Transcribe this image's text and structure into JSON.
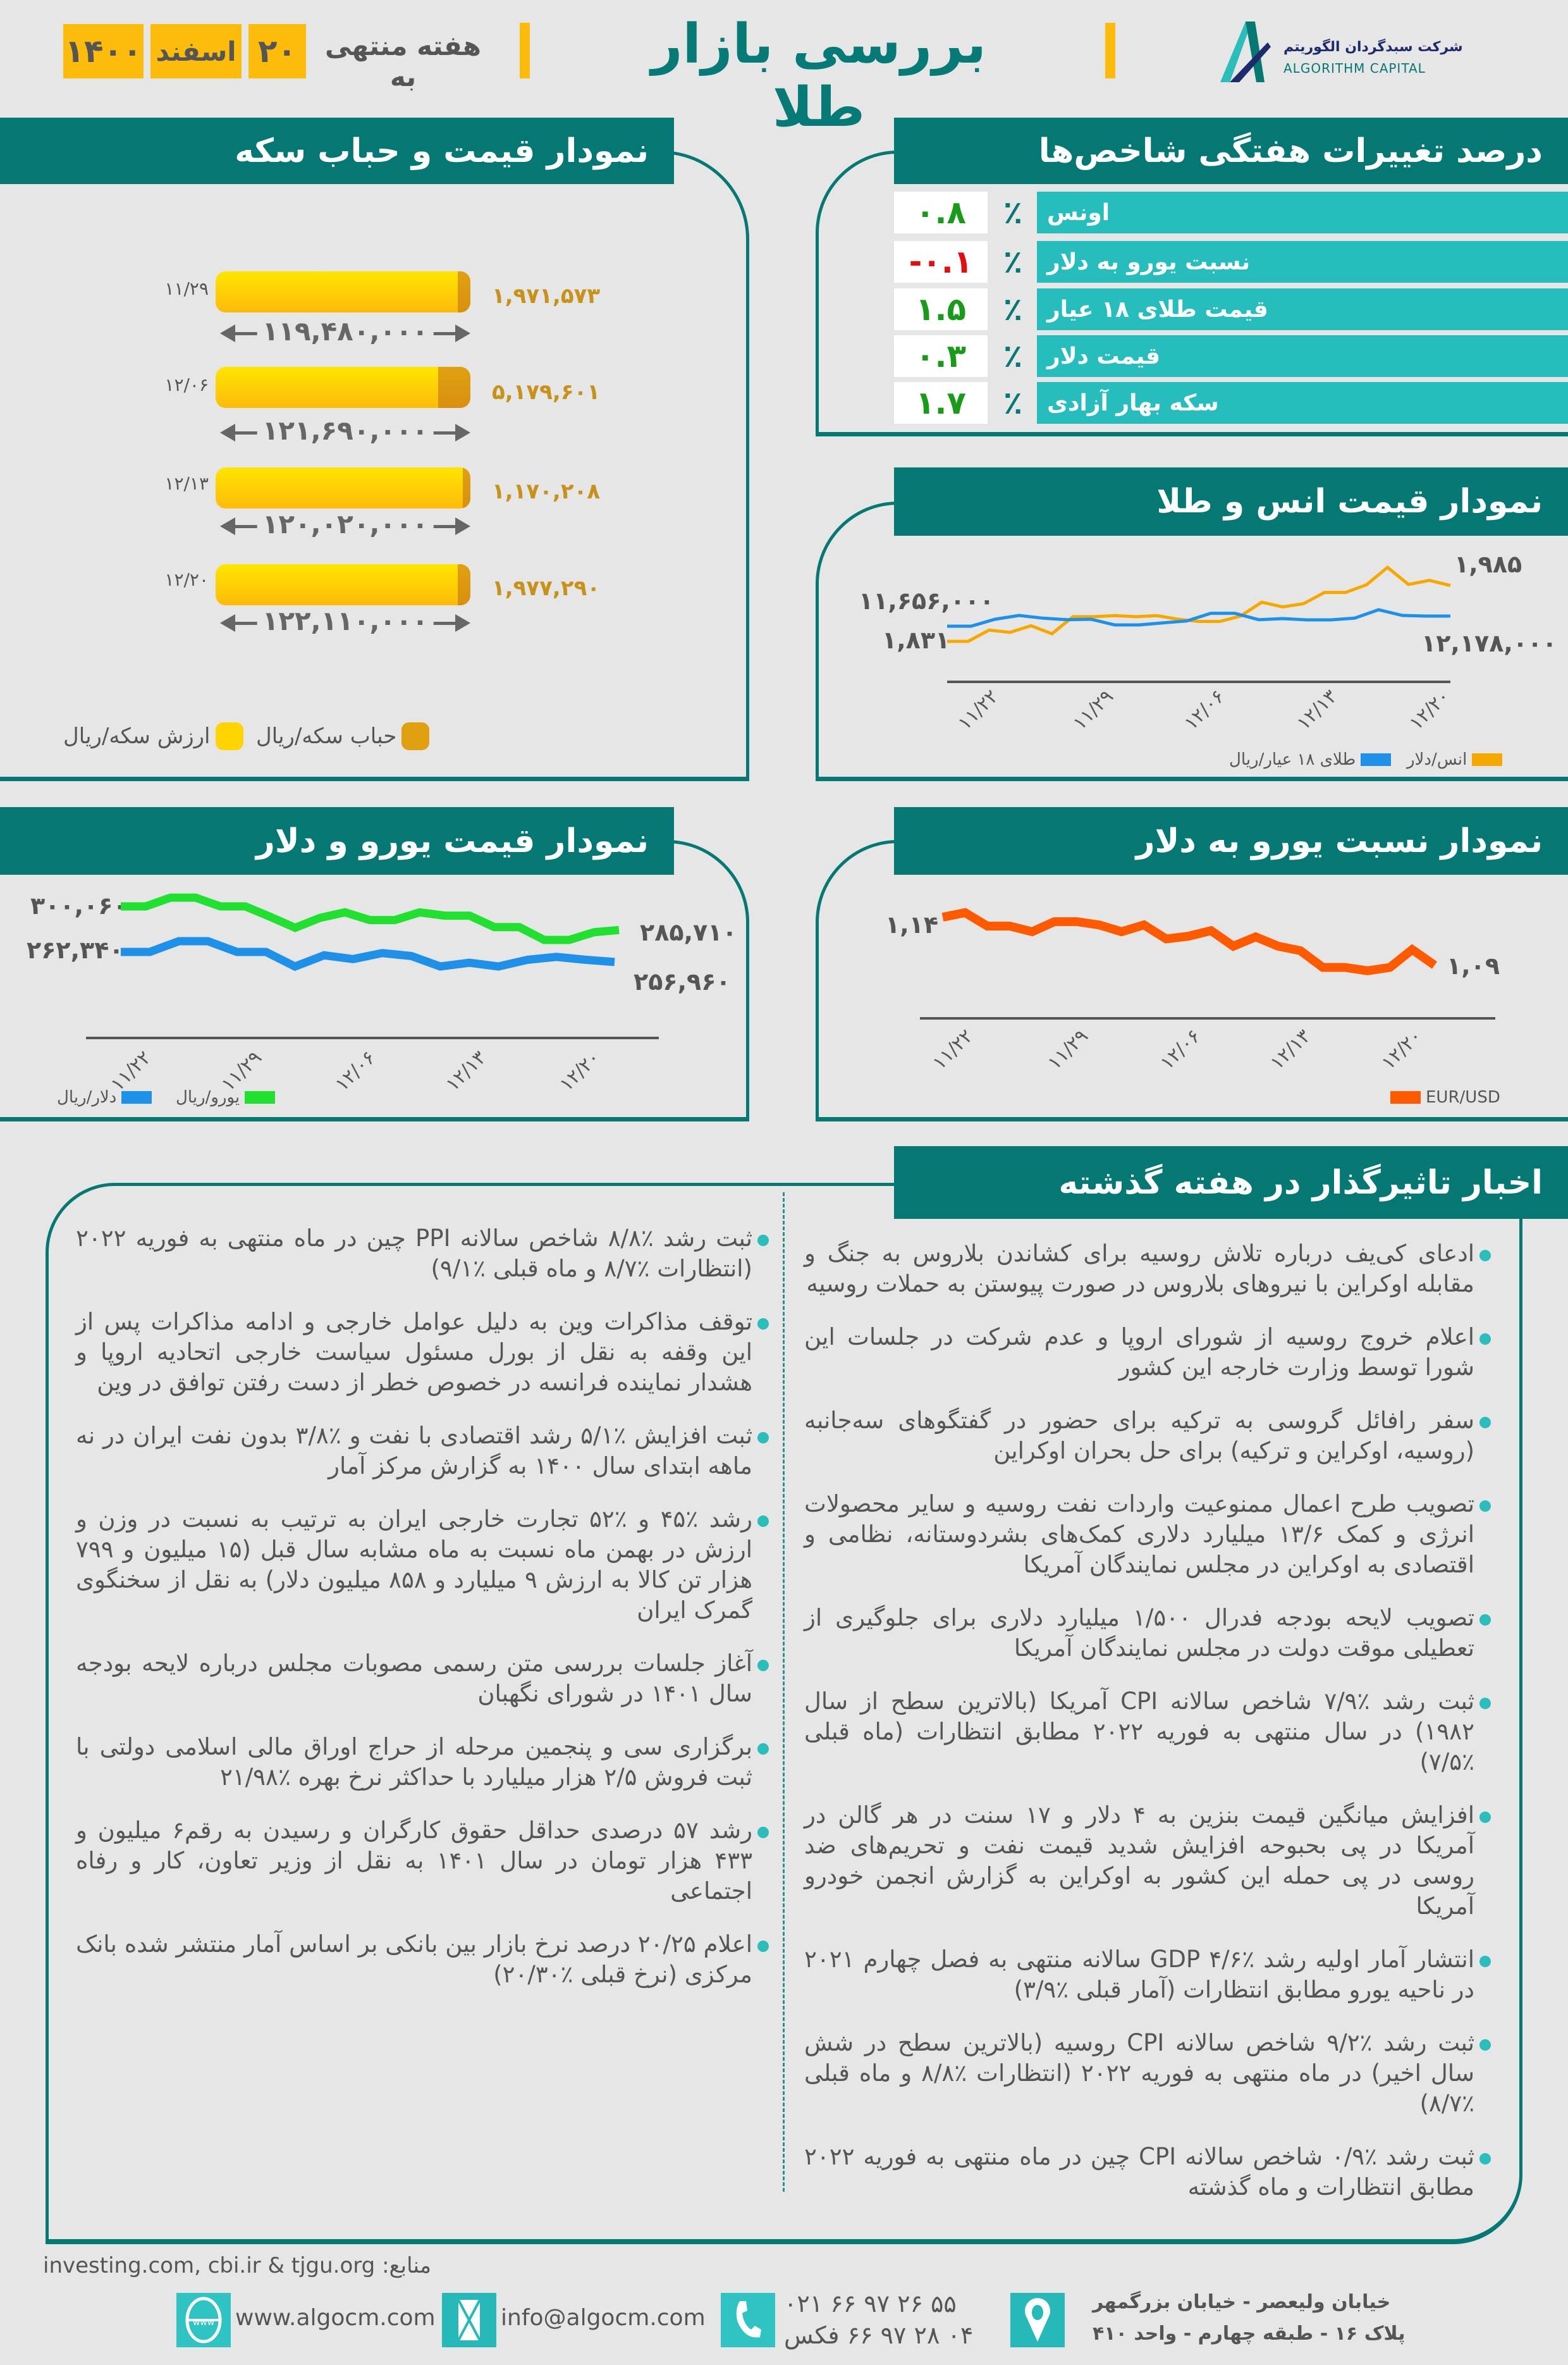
{
  "header": {
    "title": "بررسی بازار طلا",
    "week_label": "هفته منتهی به",
    "day": "۲۰",
    "month": "اسفند",
    "year": "۱۴۰۰",
    "logo_fa": "شرکت سبدگردان الگوریتم",
    "logo_en": "ALGORITHM CAPITAL"
  },
  "colors": {
    "teal_dark": "#057874",
    "teal_light": "#27bdbd",
    "yellow": "#fdbb0b",
    "positive": "#1a9a1a",
    "negative": "#e01010"
  },
  "indices": {
    "title": "درصد تغییرات هفتگی شاخص‌ها",
    "percent_sign": "٪",
    "rows": [
      {
        "label": "اونس",
        "value": "۰.۸",
        "direction": "up"
      },
      {
        "label": "نسبت یورو به دلار",
        "value": "-۰.۱",
        "direction": "down"
      },
      {
        "label": "قیمت طلای ۱۸ عیار",
        "value": "۱.۵",
        "direction": "up"
      },
      {
        "label": "قیمت دلار",
        "value": "۰.۳",
        "direction": "up"
      },
      {
        "label": "سکه بهار آزادی",
        "value": "۱.۷",
        "direction": "up"
      }
    ]
  },
  "chart_data": [
    {
      "id": "coin",
      "type": "bar",
      "title": "نمودار قیمت و حباب سکه",
      "categories": [
        "۱۱/۲۹",
        "۱۲/۰۶",
        "۱۲/۱۳",
        "۱۲/۲۰"
      ],
      "series": [
        {
          "name": "ارزش سکه/ریال",
          "values": [
            119480000,
            121690000,
            120020000,
            122110000
          ],
          "labels": [
            "۱۱۹,۴۸۰,۰۰۰",
            "۱۲۱,۶۹۰,۰۰۰",
            "۱۲۰,۰۲۰,۰۰۰",
            "۱۲۲,۱۱۰,۰۰۰"
          ],
          "color": "#ffd400"
        },
        {
          "name": "حباب سکه/ریال",
          "values": [
            1971573,
            5179601,
            1170208,
            1977290
          ],
          "labels": [
            "۱,۹۷۱,۵۷۳",
            "۵,۱۷۹,۶۰۱",
            "۱,۱۷۰,۲۰۸",
            "۱,۹۷۷,۲۹۰"
          ],
          "color": "#e0a010"
        }
      ]
    },
    {
      "id": "ounce_gold",
      "type": "line",
      "title": "نمودار قیمت انس و طلا",
      "x_ticks": [
        "۱۱/۲۲",
        "۱۱/۲۹",
        "۱۲/۰۶",
        "۱۲/۱۳",
        "۱۲/۲۰"
      ],
      "series": [
        {
          "name": "انس/دلار",
          "color": "#f7a800",
          "start_label": "۱,۸۳۱",
          "end_label": "۱,۹۸۵",
          "values": [
            1831,
            1831,
            1862,
            1856,
            1874,
            1852,
            1899,
            1899,
            1902,
            1899,
            1902,
            1892,
            1886,
            1886,
            1901,
            1939,
            1926,
            1935,
            1966,
            1966,
            1987,
            2035,
            1988,
            1999,
            1985
          ]
        },
        {
          "name": "طلای ۱۸ عیار/ریال",
          "color": "#1e90e8",
          "start_label": "۱۱,۶۵۶,۰۰۰",
          "end_label": "۱۲,۱۷۸,۰۰۰",
          "values": [
            11656000,
            11656000,
            12015000,
            12211000,
            12069000,
            11993000,
            12015000,
            11721000,
            11721000,
            11830000,
            11928000,
            12320000,
            12320000,
            11993000,
            12047000,
            11982000,
            11982000,
            12069000,
            12504000,
            12211000,
            12178000,
            12178000
          ]
        }
      ]
    },
    {
      "id": "euro_dollar",
      "type": "line",
      "title": "نمودار قیمت یورو و دلار",
      "x_ticks": [
        "۱۱/۲۲",
        "۱۱/۲۹",
        "۱۲/۰۶",
        "۱۲/۱۳",
        "۱۲/۲۰"
      ],
      "series": [
        {
          "name": "یورو/ریال",
          "color": "#22e030",
          "start_label": "۳۰۰,۰۶۰",
          "end_label": "۲۸۵,۷۱۰",
          "values": [
            300060,
            300060,
            305424,
            305424,
            300060,
            300060,
            293757,
            287052,
            293087,
            296439,
            291746,
            291746,
            296439,
            294428,
            294428,
            287455,
            287455,
            279677,
            279677,
            284370,
            285710
          ]
        },
        {
          "name": "دلار/ریال",
          "color": "#1e90e8",
          "start_label": "۲۶۲,۳۴۰",
          "end_label": "۲۵۶,۹۶۰",
          "values": [
            262340,
            262340,
            268080,
            268080,
            262340,
            262340,
            254566,
            260546,
            258513,
            261742,
            260187,
            254566,
            256600,
            254566,
            258154,
            259709,
            258154,
            256960
          ]
        }
      ]
    },
    {
      "id": "eurusd",
      "type": "line",
      "title": "نمودار نسبت یورو به دلار",
      "x_ticks": [
        "۱۱/۲۲",
        "۱۱/۲۹",
        "۱۲/۰۶",
        "۱۲/۱۳",
        "۱۲/۲۰"
      ],
      "series": [
        {
          "name": "EUR/USD",
          "color": "#ff5a00",
          "start_label": "۱,۱۴",
          "end_label": "۱,۰۹",
          "values": [
            1.14,
            1.1447,
            1.1307,
            1.1307,
            1.1249,
            1.1353,
            1.1353,
            1.1319,
            1.1249,
            1.1319,
            1.1174,
            1.1202,
            1.126,
            1.1098,
            1.1195,
            1.1098,
            1.1051,
            1.0877,
            1.0877,
            1.0842,
            1.0877,
            1.1063,
            1.09
          ]
        }
      ]
    }
  ],
  "news": {
    "title": "اخبار تاثیرگذار در هفته گذشته",
    "right_column": [
      "ادعای کی‌یف درباره تلاش روسیه برای کشاندن بلاروس به جنگ و مقابله اوکراین با نیروهای بلاروس در صورت پیوستن به حملات روسیه",
      "اعلام خروج روسیه از شورای اروپا و عدم شرکت در جلسات این شورا توسط وزارت خارجه این کشور",
      "سفر رافائل گروسی به ترکیه برای حضور در گفتگوهای سه‌جانبه (روسیه، اوکراین و ترکیه) برای حل بحران اوکراین",
      "تصویب طرح اعمال ممنوعیت واردات نفت روسیه و سایر محصولات انرژی و کمک ۱۳/۶ میلیارد دلاری کمک‌های بشردوستانه، نظامی و اقتصادی به اوکراین در مجلس نمایندگان آمریکا",
      "تصویب لایحه بودجه فدرال ۱/۵۰۰ میلیارد دلاری برای جلوگیری از تعطیلی موقت دولت در مجلس نمایندگان آمریکا",
      "ثبت رشد ٪۷/۹ شاخص سالانه CPI آمریکا (بالاترین سطح از سال ۱۹۸۲) در سال منتهی به فوریه ۲۰۲۲ مطابق انتظارات (ماه قبلی ٪۷/۵)",
      "افزایش میانگین قیمت بنزین به ۴ دلار و ۱۷ سنت در هر گالن در آمریکا در پی بحبوحه افزایش شدید قیمت نفت و تحریم‌های ضد روسی در پی حمله این کشور به اوکراین به گزارش انجمن خودرو آمریکا",
      "انتشار آمار اولیه رشد ٪۴/۶ GDP سالانه منتهی به فصل چهارم ۲۰۲۱ در ناحیه یورو مطابق انتظارات (آمار قبلی ٪۳/۹)",
      "ثبت رشد ٪۹/۲ شاخص سالانه CPI روسیه (بالاترین سطح در شش سال اخیر) در ماه منتهی به فوریه ۲۰۲۲ (انتظارات ٪۸/۸ و ماه قبلی ٪۸/۷)",
      "ثبت رشد ٪۰/۹ شاخص سالانه CPI چین در ماه منتهی به فوریه ۲۰۲۲ مطابق انتظارات و ماه گذشته"
    ],
    "left_column": [
      "ثبت رشد ٪۸/۸ شاخص سالانه PPI چین در ماه منتهی به فوریه ۲۰۲۲ (انتظارات ٪۸/۷ و ماه قبلی ٪۹/۱)",
      "توقف مذاکرات وین به دلیل عوامل خارجی و ادامه مذاکرات پس از این وقفه به نقل از بورل مسئول سیاست خارجی اتحادیه اروپا و هشدار نماینده فرانسه در خصوص خطر از دست رفتن توافق در وین",
      "ثبت افزایش ٪۵/۱ رشد اقتصادی با نفت و ٪۳/۸ بدون نفت ایران در نه ماهه ابتدای سال ۱۴۰۰ به گزارش مرکز آمار",
      "رشد ٪۴۵ و ٪۵۲ تجارت خارجی ایران به ترتیب به نسبت در وزن و ارزش در بهمن ماه نسبت به ماه مشابه سال قبل (۱۵ میلیون و ۷۹۹ هزار تن کالا به ارزش ۹ میلیارد و ۸۵۸ میلیون دلار) به نقل از سخنگوی گمرک ایران",
      "آغاز جلسات بررسی متن رسمی مصوبات مجلس درباره لایحه بودجه سال ۱۴۰۱ در شورای نگهبان",
      "برگزاری سی و پنجمین مرحله از حراج اوراق مالی اسلامی دولتی با ثبت فروش ۲/۵ هزار میلیارد با حداکثر نرخ بهره ٪۲۱/۹۸",
      "رشد ۵۷ درصدی حداقل حقوق کارگران و رسیدن به رقم۶ میلیون و ۴۳۳ هزار تومان در سال ۱۴۰۱ به نقل از وزیر تعاون، کار و رفاه اجتماعی",
      "اعلام ۲۰/۲۵ درصد نرخ بازار بین بانکی بر اساس آمار منتشر شده بانک مرکزی (نرخ قبلی ٪۲۰/۳۰)"
    ]
  },
  "footer": {
    "sources": "منابع: investing.com, cbi.ir & tjgu.org",
    "website": "www.algocm.com",
    "email": "info@algocm.com",
    "phone": "۰۲۱ ۶۶ ۹۷ ۲۶ ۵۵",
    "fax": "۰۴ ۲۸ ۹۷ ۶۶ فکس",
    "address_line1": "خیابان ولیعصر - خیابان بزرگمهر",
    "address_line2": "پلاک ۱۶ - طبقه چهارم - واحد ۴۱۰",
    "icons": [
      "globe-icon",
      "mail-icon",
      "phone-icon",
      "location-pin-icon"
    ]
  }
}
